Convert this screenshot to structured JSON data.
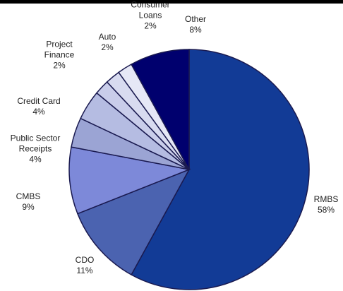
{
  "chart_data": {
    "type": "pie",
    "categories": [
      "RMBS",
      "CDO",
      "CMBS",
      "Public Sector Receipts",
      "Credit Card",
      "Project Finance",
      "Auto",
      "Consumer Loans",
      "Other"
    ],
    "values": [
      58,
      11,
      9,
      4,
      4,
      2,
      2,
      2,
      8
    ],
    "value_labels": [
      "58%",
      "11%",
      "9%",
      "4%",
      "4%",
      "2%",
      "2%",
      "2%",
      "8%"
    ],
    "colors": [
      "#123b96",
      "#4b63b0",
      "#7d89d9",
      "#9ba4d4",
      "#b5bce2",
      "#c9cdea",
      "#d8dbf0",
      "#e6e8f6",
      "#00006e"
    ]
  }
}
